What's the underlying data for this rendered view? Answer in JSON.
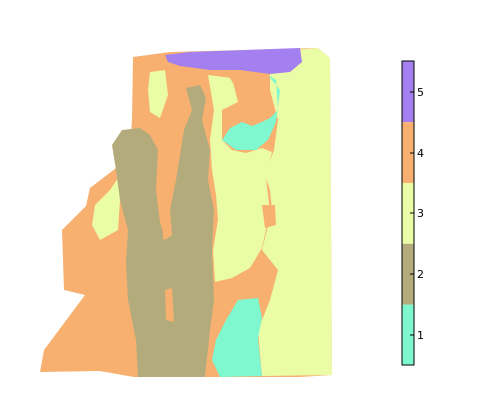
{
  "map": {
    "classes": [
      {
        "value": "1",
        "color": "#7ff7cf"
      },
      {
        "value": "2",
        "color": "#b3ab7b"
      },
      {
        "value": "3",
        "color": "#ebfca6"
      },
      {
        "value": "4",
        "color": "#f7b06f"
      },
      {
        "value": "5",
        "color": "#a47ff0"
      }
    ]
  },
  "legend": {
    "labels": [
      "1",
      "2",
      "3",
      "4",
      "5"
    ]
  }
}
